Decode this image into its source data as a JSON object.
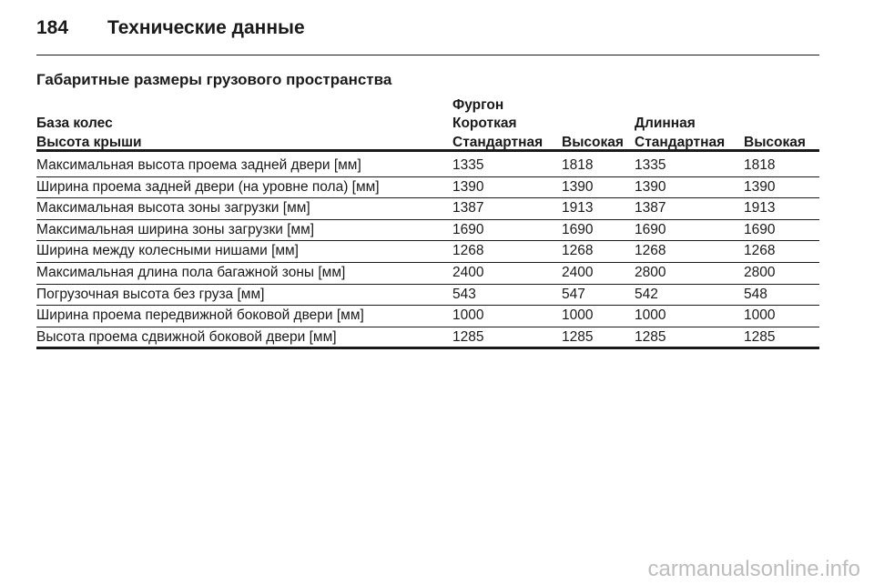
{
  "header": {
    "page_number": "184",
    "title": "Технические данные"
  },
  "section_title": "Габаритные размеры грузового пространства",
  "table": {
    "group": "Фургон",
    "row_label_1": "База колес",
    "row_label_2": "Высота крыши",
    "subgroups": [
      "Короткая",
      "Длинная"
    ],
    "columns": [
      "Стандартная",
      "Высокая",
      "Стандартная",
      "Высокая"
    ],
    "rows": [
      [
        "Максимальная высота проема задней двери [мм]",
        "1335",
        "1818",
        "1335",
        "1818"
      ],
      [
        "Ширина проема задней двери (на уровне пола) [мм]",
        "1390",
        "1390",
        "1390",
        "1390"
      ],
      [
        "Максимальная высота зоны загрузки [мм]",
        "1387",
        "1913",
        "1387",
        "1913"
      ],
      [
        "Максимальная ширина зоны загрузки [мм]",
        "1690",
        "1690",
        "1690",
        "1690"
      ],
      [
        "Ширина между колесными нишами [мм]",
        "1268",
        "1268",
        "1268",
        "1268"
      ],
      [
        "Максимальная длина пола багажной зоны [мм]",
        "2400",
        "2400",
        "2800",
        "2800"
      ],
      [
        "Погрузочная высота без груза [мм]",
        "543",
        "547",
        "542",
        "548"
      ],
      [
        "Ширина проема передвижной боковой двери [мм]",
        "1000",
        "1000",
        "1000",
        "1000"
      ],
      [
        "Высота проема сдвижной боковой двери [мм]",
        "1285",
        "1285",
        "1285",
        "1285"
      ]
    ]
  },
  "watermark": "carmanualsonline.info"
}
